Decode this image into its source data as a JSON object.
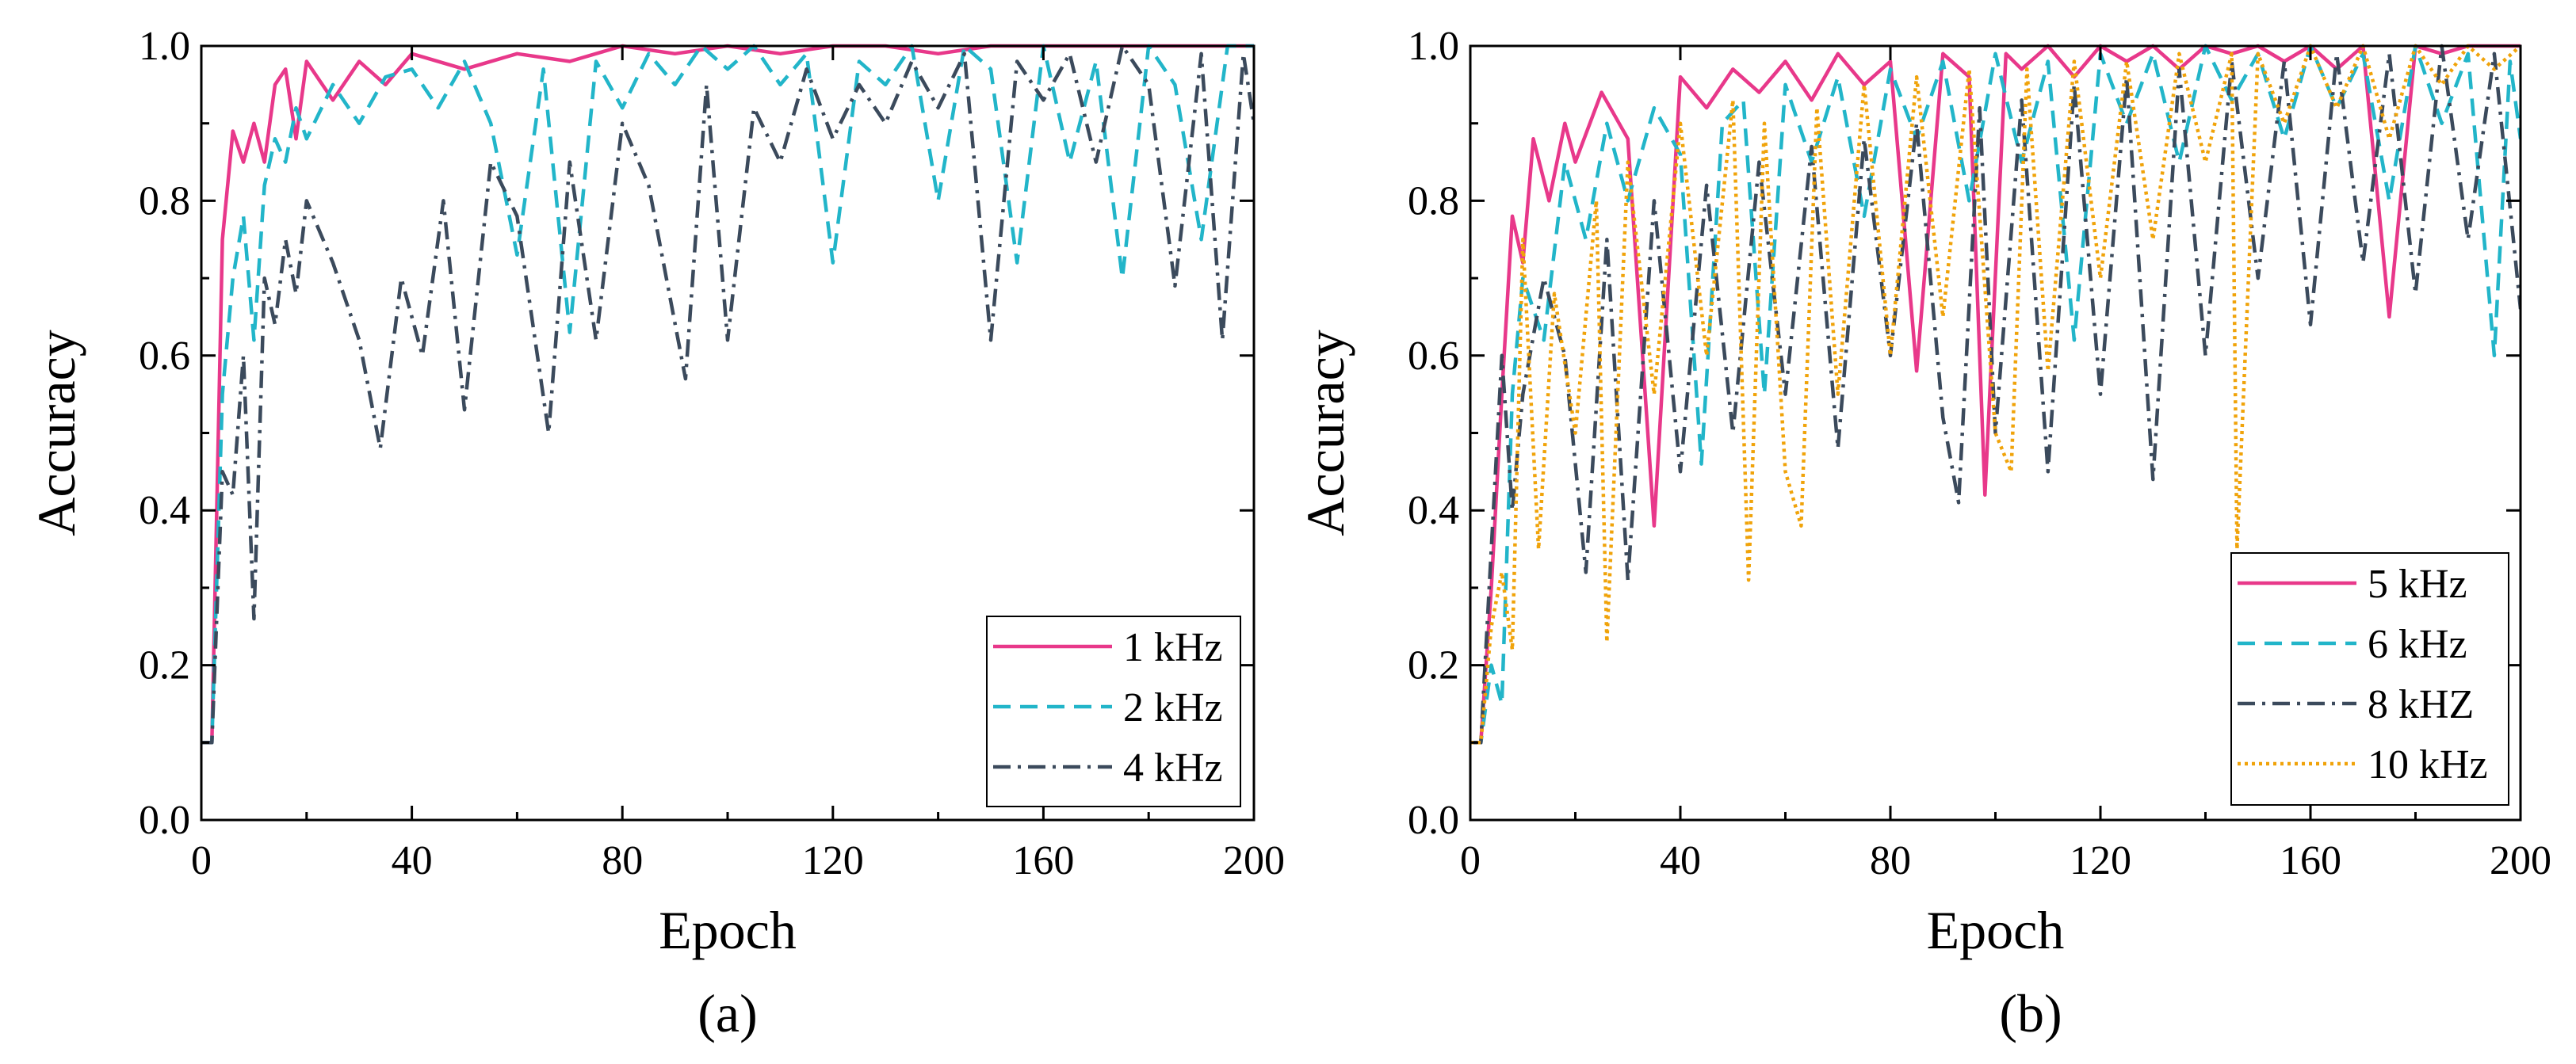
{
  "figure": {
    "panels": [
      {
        "caption": "(a)"
      },
      {
        "caption": "(b)"
      }
    ]
  },
  "chart_data": [
    {
      "type": "line",
      "panel_label": "(a)",
      "xlabel": "Epoch",
      "ylabel": "Accuracy",
      "xlim": [
        0,
        200
      ],
      "ylim": [
        0.0,
        1.0
      ],
      "xticks": [
        0,
        40,
        80,
        120,
        160,
        200
      ],
      "xtick_labels": [
        "0",
        "40",
        "80",
        "120",
        "160",
        "200"
      ],
      "yticks": [
        0.0,
        0.2,
        0.4,
        0.6,
        0.8,
        1.0
      ],
      "ytick_labels": [
        "0.0",
        "0.2",
        "0.4",
        "0.6",
        "0.8",
        "1.0"
      ],
      "legend_position": "bottom-right",
      "series": [
        {
          "name": "1 kHz",
          "color": "#E8388A",
          "style": "solid",
          "x": [
            0,
            2,
            4,
            6,
            8,
            10,
            12,
            14,
            16,
            18,
            20,
            25,
            30,
            35,
            40,
            50,
            60,
            70,
            80,
            90,
            100,
            110,
            120,
            130,
            140,
            150,
            160,
            170,
            180,
            190,
            200
          ],
          "y": [
            0.1,
            0.1,
            0.75,
            0.89,
            0.85,
            0.9,
            0.85,
            0.95,
            0.97,
            0.88,
            0.98,
            0.93,
            0.98,
            0.95,
            0.99,
            0.97,
            0.99,
            0.98,
            1.0,
            0.99,
            1.0,
            0.99,
            1.0,
            1.0,
            0.99,
            1.0,
            1.0,
            1.0,
            1.0,
            1.0,
            1.0
          ]
        },
        {
          "name": "2 kHz",
          "color": "#22B5C9",
          "style": "dashed",
          "x": [
            0,
            2,
            4,
            6,
            8,
            10,
            12,
            14,
            16,
            18,
            20,
            25,
            30,
            35,
            40,
            45,
            50,
            55,
            60,
            65,
            70,
            75,
            80,
            85,
            90,
            95,
            100,
            105,
            110,
            115,
            120,
            125,
            130,
            135,
            140,
            145,
            150,
            155,
            160,
            165,
            170,
            175,
            180,
            185,
            190,
            195,
            200
          ],
          "y": [
            0.1,
            0.1,
            0.55,
            0.7,
            0.78,
            0.62,
            0.82,
            0.88,
            0.85,
            0.92,
            0.88,
            0.95,
            0.9,
            0.96,
            0.97,
            0.92,
            0.98,
            0.9,
            0.73,
            0.97,
            0.63,
            0.98,
            0.92,
            0.99,
            0.95,
            1.0,
            0.97,
            1.0,
            0.95,
            0.99,
            0.72,
            0.98,
            0.95,
            1.0,
            0.8,
            1.0,
            0.97,
            0.72,
            1.0,
            0.85,
            0.98,
            0.7,
            1.0,
            0.95,
            0.75,
            1.0,
            1.0
          ]
        },
        {
          "name": "4 kHz",
          "color": "#3B4A5C",
          "style": "dashdot",
          "x": [
            0,
            2,
            4,
            6,
            8,
            10,
            12,
            14,
            16,
            18,
            20,
            25,
            30,
            34,
            38,
            42,
            46,
            50,
            55,
            60,
            66,
            70,
            75,
            80,
            85,
            92,
            96,
            100,
            105,
            110,
            115,
            120,
            125,
            130,
            135,
            140,
            145,
            150,
            155,
            160,
            165,
            170,
            175,
            180,
            185,
            190,
            194,
            198,
            200
          ],
          "y": [
            0.1,
            0.1,
            0.45,
            0.42,
            0.6,
            0.26,
            0.7,
            0.64,
            0.75,
            0.68,
            0.8,
            0.72,
            0.62,
            0.48,
            0.7,
            0.6,
            0.8,
            0.53,
            0.85,
            0.78,
            0.5,
            0.85,
            0.62,
            0.9,
            0.82,
            0.57,
            0.95,
            0.62,
            0.92,
            0.85,
            0.97,
            0.88,
            0.95,
            0.9,
            0.98,
            0.92,
            0.99,
            0.62,
            0.98,
            0.93,
            0.99,
            0.85,
            1.0,
            0.95,
            0.69,
            0.99,
            0.62,
            0.99,
            0.9
          ]
        }
      ]
    },
    {
      "type": "line",
      "panel_label": "(b)",
      "xlabel": "Epoch",
      "ylabel": "Accuracy",
      "xlim": [
        0,
        200
      ],
      "ylim": [
        0.0,
        1.0
      ],
      "xticks": [
        0,
        40,
        80,
        120,
        160,
        200
      ],
      "xtick_labels": [
        "0",
        "40",
        "80",
        "120",
        "160",
        "200"
      ],
      "yticks": [
        0.0,
        0.2,
        0.4,
        0.6,
        0.8,
        1.0
      ],
      "ytick_labels": [
        "0.0",
        "0.2",
        "0.4",
        "0.6",
        "0.8",
        "1.0"
      ],
      "legend_position": "center-right",
      "series": [
        {
          "name": "5 kHz",
          "color": "#E8388A",
          "style": "solid",
          "x": [
            0,
            2,
            4,
            6,
            8,
            10,
            12,
            15,
            18,
            20,
            25,
            30,
            35,
            40,
            45,
            50,
            55,
            60,
            65,
            70,
            75,
            80,
            85,
            90,
            95,
            98,
            102,
            105,
            110,
            115,
            120,
            125,
            130,
            135,
            140,
            145,
            150,
            155,
            160,
            165,
            170,
            175,
            180,
            185,
            190,
            195,
            200
          ],
          "y": [
            0.1,
            0.1,
            0.3,
            0.55,
            0.78,
            0.72,
            0.88,
            0.8,
            0.9,
            0.85,
            0.94,
            0.88,
            0.38,
            0.96,
            0.92,
            0.97,
            0.94,
            0.98,
            0.93,
            0.99,
            0.95,
            0.98,
            0.58,
            0.99,
            0.96,
            0.42,
            0.99,
            0.97,
            1.0,
            0.96,
            1.0,
            0.98,
            1.0,
            0.97,
            1.0,
            0.99,
            1.0,
            0.98,
            1.0,
            0.97,
            1.0,
            0.65,
            1.0,
            0.99,
            1.0,
            1.0,
            1.0
          ]
        },
        {
          "name": "6 kHz",
          "color": "#22B5C9",
          "style": "dashed",
          "x": [
            0,
            2,
            4,
            6,
            8,
            10,
            14,
            18,
            22,
            26,
            30,
            35,
            40,
            44,
            48,
            52,
            56,
            60,
            65,
            70,
            75,
            80,
            85,
            90,
            95,
            100,
            105,
            110,
            115,
            120,
            125,
            130,
            135,
            140,
            145,
            150,
            155,
            160,
            165,
            170,
            175,
            180,
            185,
            190,
            195,
            198,
            200
          ],
          "y": [
            0.1,
            0.1,
            0.2,
            0.15,
            0.55,
            0.7,
            0.62,
            0.85,
            0.75,
            0.9,
            0.8,
            0.92,
            0.86,
            0.46,
            0.9,
            0.93,
            0.55,
            0.95,
            0.85,
            0.96,
            0.78,
            0.97,
            0.88,
            0.98,
            0.8,
            0.99,
            0.85,
            0.98,
            0.62,
            0.99,
            0.9,
            0.99,
            0.85,
            1.0,
            0.93,
            0.99,
            0.88,
            1.0,
            0.92,
            0.99,
            0.8,
            1.0,
            0.9,
            0.99,
            0.6,
            0.98,
            0.88
          ]
        },
        {
          "name": "8 kHZ",
          "color": "#3B4A5C",
          "style": "dashdot",
          "x": [
            0,
            2,
            4,
            6,
            8,
            10,
            14,
            18,
            22,
            26,
            30,
            35,
            40,
            45,
            50,
            55,
            60,
            65,
            70,
            75,
            80,
            85,
            90,
            93,
            97,
            100,
            105,
            110,
            115,
            120,
            125,
            130,
            135,
            140,
            145,
            150,
            155,
            160,
            165,
            170,
            175,
            180,
            185,
            190,
            195,
            200
          ],
          "y": [
            0.1,
            0.1,
            0.35,
            0.6,
            0.4,
            0.55,
            0.7,
            0.6,
            0.32,
            0.75,
            0.31,
            0.8,
            0.45,
            0.82,
            0.5,
            0.85,
            0.55,
            0.87,
            0.48,
            0.88,
            0.6,
            0.9,
            0.52,
            0.41,
            0.92,
            0.5,
            0.93,
            0.45,
            0.95,
            0.55,
            0.96,
            0.44,
            0.97,
            0.6,
            0.98,
            0.7,
            0.98,
            0.64,
            0.99,
            0.72,
            0.99,
            0.68,
            1.0,
            0.75,
            0.99,
            0.66
          ]
        },
        {
          "name": "10 kHz",
          "color": "#F0A30A",
          "style": "dotted",
          "x": [
            0,
            2,
            4,
            6,
            8,
            10,
            13,
            16,
            20,
            24,
            26,
            30,
            35,
            40,
            45,
            50,
            53,
            56,
            60,
            63,
            66,
            70,
            75,
            80,
            85,
            90,
            95,
            100,
            103,
            106,
            110,
            115,
            120,
            125,
            130,
            135,
            140,
            145,
            146,
            150,
            155,
            160,
            165,
            170,
            175,
            180,
            185,
            190,
            195,
            200
          ],
          "y": [
            0.1,
            0.1,
            0.25,
            0.32,
            0.22,
            0.75,
            0.35,
            0.68,
            0.5,
            0.8,
            0.23,
            0.85,
            0.55,
            0.9,
            0.6,
            0.93,
            0.31,
            0.9,
            0.45,
            0.38,
            0.92,
            0.55,
            0.95,
            0.6,
            0.96,
            0.65,
            0.97,
            0.5,
            0.45,
            0.97,
            0.58,
            0.98,
            0.7,
            0.98,
            0.75,
            0.99,
            0.85,
            0.99,
            0.35,
            0.99,
            0.9,
            1.0,
            0.92,
            1.0,
            0.88,
            1.0,
            0.95,
            1.0,
            0.97,
            1.0
          ]
        }
      ]
    }
  ]
}
